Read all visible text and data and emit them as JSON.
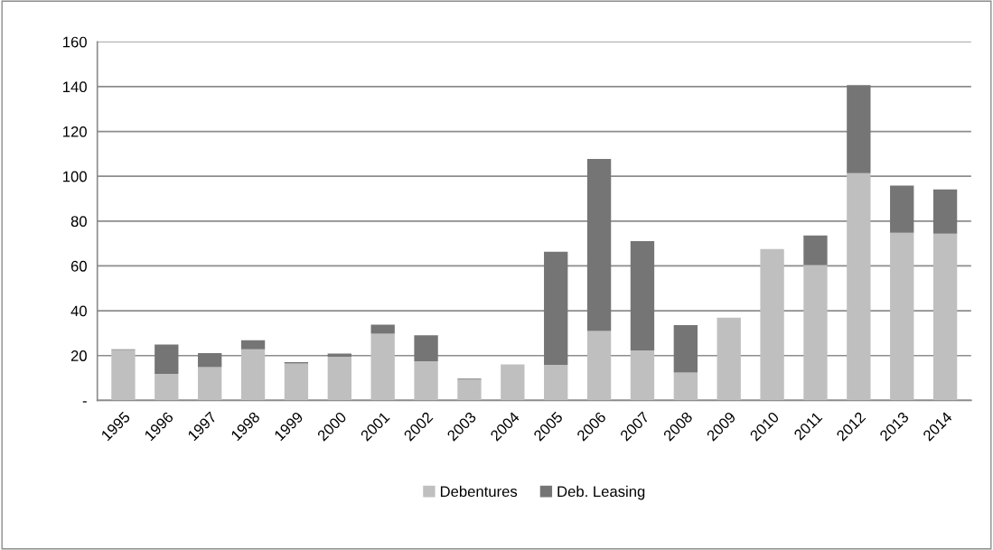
{
  "chart_data": {
    "type": "bar",
    "stacked": true,
    "categories": [
      "1995",
      "1996",
      "1997",
      "1998",
      "1999",
      "2000",
      "2001",
      "2002",
      "2003",
      "2004",
      "2005",
      "2006",
      "2007",
      "2008",
      "2009",
      "2010",
      "2011",
      "2012",
      "2013",
      "2014"
    ],
    "series": [
      {
        "name": "Debentures",
        "color": "#bfbfbf",
        "values": [
          22.5,
          11.8,
          14.8,
          22.8,
          16.5,
          19.5,
          29.8,
          17.5,
          9.3,
          16.1,
          15.9,
          31.0,
          22.3,
          12.4,
          36.9,
          67.5,
          60.4,
          101.4,
          74.8,
          74.4
        ]
      },
      {
        "name": "Deb. Leasing",
        "color": "#757575",
        "values": [
          0.3,
          13.1,
          6.3,
          4.0,
          0.6,
          1.4,
          4.0,
          11.6,
          0.4,
          0,
          50.4,
          76.7,
          48.8,
          21.2,
          0,
          0,
          13.2,
          39.3,
          21.0,
          19.7
        ]
      }
    ],
    "ylim": [
      0,
      160
    ],
    "yticks": [
      {
        "value": 0,
        "label": "-"
      },
      20,
      40,
      60,
      80,
      100,
      120,
      140,
      160
    ],
    "grid": "y",
    "legend": "bottom"
  }
}
